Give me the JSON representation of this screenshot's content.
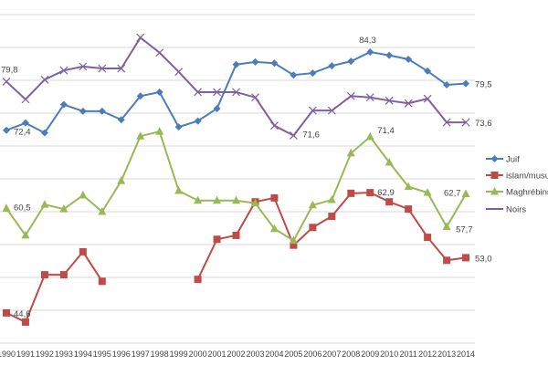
{
  "chart_data": {
    "type": "line",
    "title": "",
    "xlabel": "",
    "ylabel": "",
    "ylim": [
      40,
      90
    ],
    "grid": true,
    "legend_position": "right",
    "categories": [
      "1990",
      "1991",
      "1992",
      "1993",
      "1994",
      "1995",
      "1996",
      "1997",
      "1998",
      "1999",
      "2000",
      "2001",
      "2002",
      "2003",
      "2004",
      "2005",
      "2006",
      "2007",
      "2008",
      "2009",
      "2010",
      "2011",
      "2012",
      "2013",
      "2014"
    ],
    "series": [
      {
        "name": "Juif",
        "color": "#4a7ebb",
        "marker": "diamond",
        "values": [
          72.4,
          73.5,
          72.0,
          76.3,
          75.3,
          75.3,
          74.0,
          77.6,
          78.2,
          72.9,
          73.8,
          75.7,
          82.4,
          82.8,
          82.6,
          80.8,
          81.1,
          82.2,
          82.9,
          84.3,
          83.8,
          83.2,
          81.4,
          79.3,
          79.5
        ]
      },
      {
        "name": "islam/musulm",
        "color": "#be4b48",
        "marker": "square",
        "values": [
          44.6,
          43.2,
          50.4,
          50.4,
          53.9,
          49.4,
          null,
          null,
          null,
          null,
          49.7,
          55.8,
          56.4,
          61.5,
          62.1,
          54.9,
          57.6,
          59.3,
          62.8,
          62.9,
          61.5,
          60.4,
          56.1,
          52.6,
          53.0
        ]
      },
      {
        "name": "Maghrébins",
        "color": "#98b954",
        "marker": "triangle",
        "values": [
          60.5,
          56.4,
          61.1,
          60.4,
          62.5,
          60.0,
          64.7,
          71.5,
          72.2,
          63.2,
          61.7,
          61.7,
          61.7,
          61.3,
          57.4,
          55.6,
          61.0,
          61.8,
          68.9,
          71.4,
          67.5,
          63.8,
          62.9,
          57.7,
          62.7
        ]
      },
      {
        "name": "Noirs",
        "color": "#7d60a0",
        "marker": "x",
        "values": [
          79.8,
          77.1,
          80.1,
          81.5,
          82.1,
          81.8,
          81.8,
          86.5,
          84.2,
          81.3,
          78.2,
          78.2,
          78.2,
          77.4,
          73.1,
          71.6,
          75.4,
          75.4,
          77.6,
          77.4,
          76.9,
          76.5,
          77.2,
          73.6,
          73.6
        ]
      }
    ],
    "data_labels": [
      {
        "series": 0,
        "index": 0,
        "text": "72,4"
      },
      {
        "series": 0,
        "index": 19,
        "text": "84,3"
      },
      {
        "series": 0,
        "index": 24,
        "text": "79,5"
      },
      {
        "series": 1,
        "index": 0,
        "text": "44,6"
      },
      {
        "series": 1,
        "index": 19,
        "text": "62,9"
      },
      {
        "series": 1,
        "index": 24,
        "text": "53,0"
      },
      {
        "series": 2,
        "index": 0,
        "text": "60,5"
      },
      {
        "series": 2,
        "index": 19,
        "text": "71,4"
      },
      {
        "series": 2,
        "index": 23,
        "text": "57,7"
      },
      {
        "series": 2,
        "index": 24,
        "text": "62,7"
      },
      {
        "series": 3,
        "index": 0,
        "text": "79,8"
      },
      {
        "series": 3,
        "index": 15,
        "text": "71,6"
      },
      {
        "series": 3,
        "index": 24,
        "text": "73,6"
      }
    ]
  }
}
